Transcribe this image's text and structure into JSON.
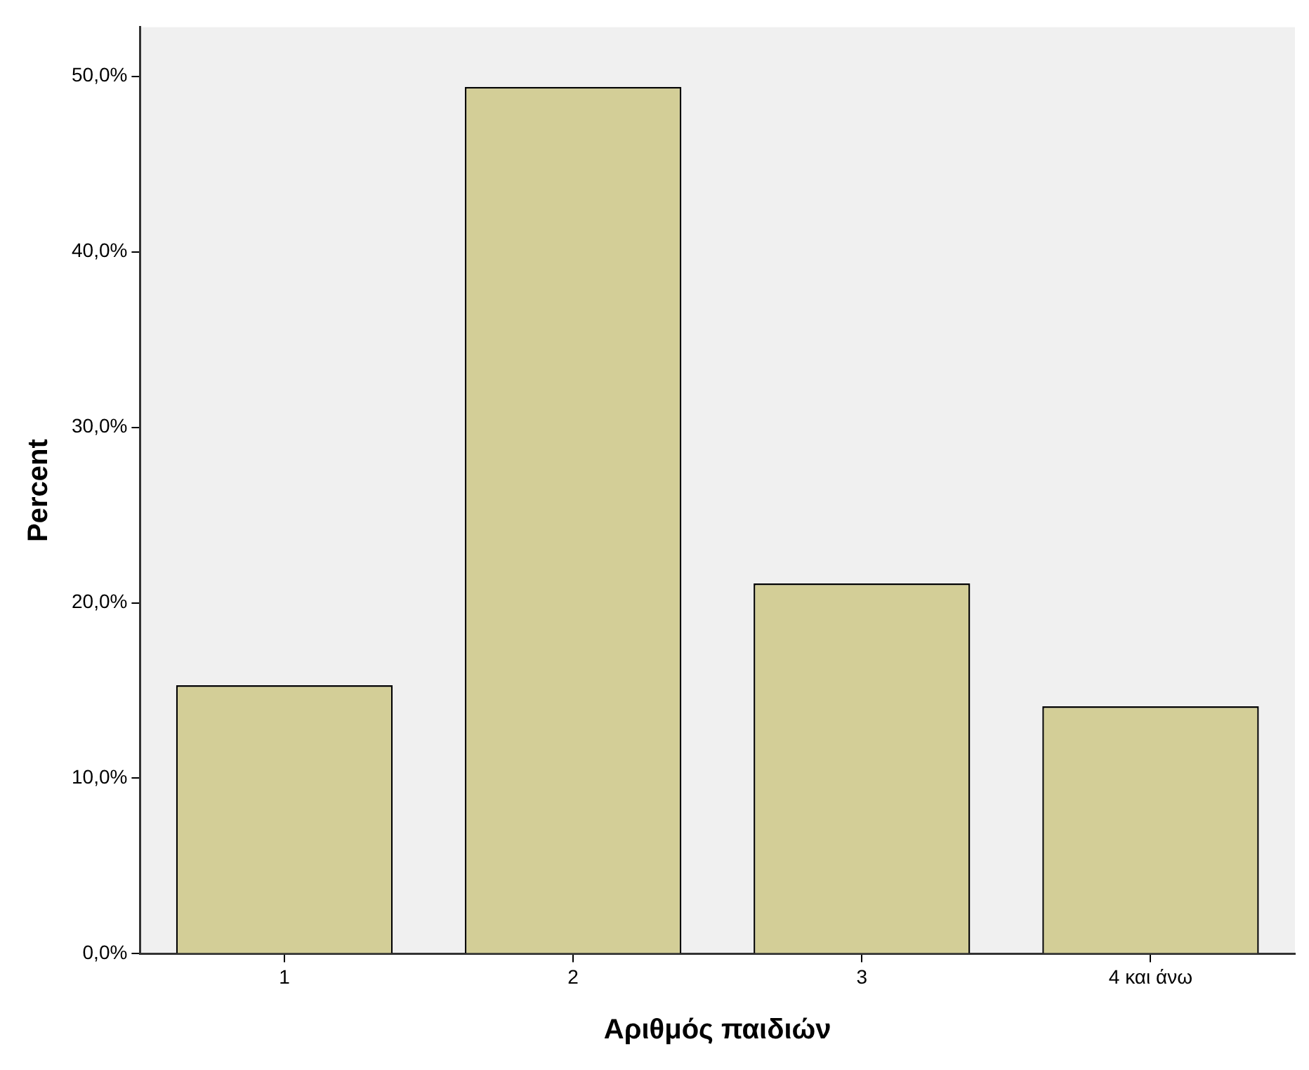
{
  "chart_data": {
    "type": "bar",
    "xlabel": "Αριθμός παιδιών",
    "ylabel": "Percent",
    "categories": [
      "1",
      "2",
      "3",
      "4 και άνω"
    ],
    "values": [
      15.3,
      49.4,
      21.1,
      14.1
    ],
    "color": "#d3ce97",
    "ylim": [
      0,
      52.8
    ],
    "yticks": [
      {
        "value": 0,
        "label": "0,0%"
      },
      {
        "value": 10,
        "label": "10,0%"
      },
      {
        "value": 20,
        "label": "20,0%"
      },
      {
        "value": 30,
        "label": "30,0%"
      },
      {
        "value": 40,
        "label": "40,0%"
      },
      {
        "value": 50,
        "label": "50,0%"
      }
    ],
    "grid": false,
    "legend": false
  }
}
